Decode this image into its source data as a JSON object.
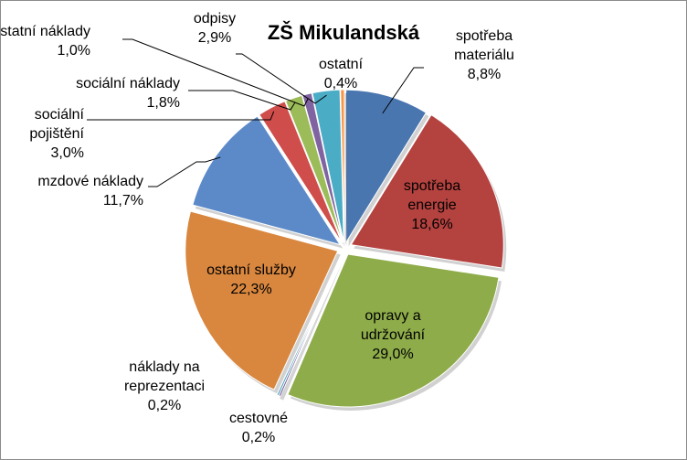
{
  "chart_data": {
    "type": "pie",
    "title": "ZŠ Mikulandská",
    "slices": [
      {
        "lines": [
          "spotřeba",
          "materiálu",
          "8,8%"
        ],
        "value": 8.8,
        "color": "#4a76b0"
      },
      {
        "lines": [
          "spotřeba",
          "energie",
          "18,6%"
        ],
        "value": 18.6,
        "color": "#b4423f"
      },
      {
        "lines": [
          "opravy a",
          "udržování",
          "29,0%"
        ],
        "value": 29.0,
        "color": "#8eac4a"
      },
      {
        "lines": [
          "cestovné",
          "0,2%"
        ],
        "value": 0.2,
        "color": "#6c5393"
      },
      {
        "lines": [
          "náklady na",
          "reprezentaci",
          "0,2%"
        ],
        "value": 0.2,
        "color": "#3f9bb3"
      },
      {
        "lines": [
          "ostatní služby",
          "22,3%"
        ],
        "value": 22.3,
        "color": "#d9873f"
      },
      {
        "lines": [
          "mzdové náklady",
          "11,7%"
        ],
        "value": 11.7,
        "color": "#5c8ac9"
      },
      {
        "lines": [
          "sociální",
          "pojištění",
          "3,0%"
        ],
        "value": 3.0,
        "color": "#cf4d4a"
      },
      {
        "lines": [
          "sociální náklady",
          "1,8%"
        ],
        "value": 1.8,
        "color": "#9bbc58"
      },
      {
        "lines": [
          "ostatní náklady",
          "1,0%"
        ],
        "value": 1.0,
        "color": "#8064a2"
      },
      {
        "lines": [
          "odpisy",
          "2,9%"
        ],
        "value": 2.9,
        "color": "#4bacc6"
      },
      {
        "lines": [
          "ostatní",
          "0,4%"
        ],
        "value": 0.4,
        "color": "#f79646"
      }
    ]
  }
}
